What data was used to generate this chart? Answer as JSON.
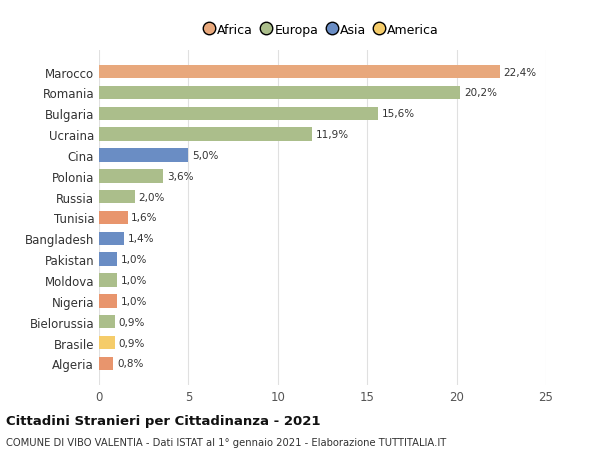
{
  "countries": [
    "Algeria",
    "Brasile",
    "Bielorussia",
    "Nigeria",
    "Moldova",
    "Pakistan",
    "Bangladesh",
    "Tunisia",
    "Russia",
    "Polonia",
    "Cina",
    "Ucraina",
    "Bulgaria",
    "Romania",
    "Marocco"
  ],
  "values": [
    0.8,
    0.9,
    0.9,
    1.0,
    1.0,
    1.0,
    1.4,
    1.6,
    2.0,
    3.6,
    5.0,
    11.9,
    15.6,
    20.2,
    22.4
  ],
  "labels": [
    "0,8%",
    "0,9%",
    "0,9%",
    "1,0%",
    "1,0%",
    "1,0%",
    "1,4%",
    "1,6%",
    "2,0%",
    "3,6%",
    "5,0%",
    "11,9%",
    "15,6%",
    "20,2%",
    "22,4%"
  ],
  "colors": [
    "#E8956D",
    "#F5CC6A",
    "#ABBE8B",
    "#E8956D",
    "#ABBE8B",
    "#6A8DC4",
    "#6A8DC4",
    "#E8956D",
    "#ABBE8B",
    "#ABBE8B",
    "#6A8DC4",
    "#ABBE8B",
    "#ABBE8B",
    "#ABBE8B",
    "#E8A87C"
  ],
  "continent": [
    "Africa",
    "America",
    "Europa",
    "Africa",
    "Europa",
    "Asia",
    "Asia",
    "Africa",
    "Europa",
    "Europa",
    "Asia",
    "Europa",
    "Europa",
    "Europa",
    "Africa"
  ],
  "legend_labels": [
    "Africa",
    "Europa",
    "Asia",
    "America"
  ],
  "legend_colors": [
    "#E8A87C",
    "#ABBE8B",
    "#6A8DC4",
    "#F5CC6A"
  ],
  "title": "Cittadini Stranieri per Cittadinanza - 2021",
  "subtitle": "COMUNE DI VIBO VALENTIA - Dati ISTAT al 1° gennaio 2021 - Elaborazione TUTTITALIA.IT",
  "xlim": [
    0,
    25
  ],
  "xticks": [
    0,
    5,
    10,
    15,
    20,
    25
  ],
  "bg_color": "#ffffff",
  "grid_color": "#e0e0e0",
  "bar_height": 0.65
}
